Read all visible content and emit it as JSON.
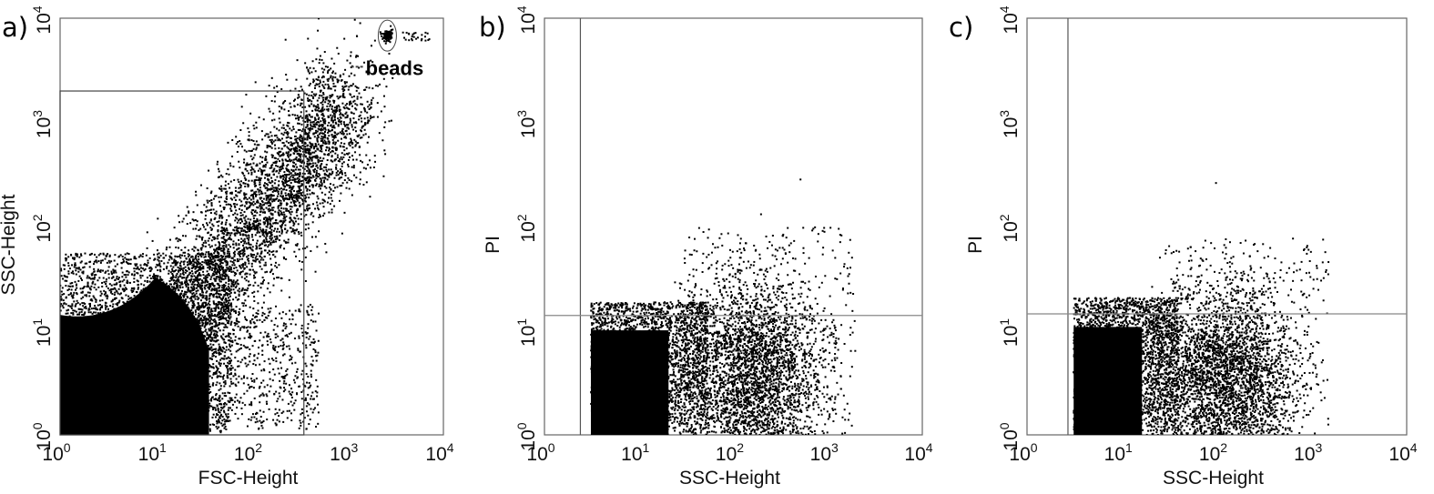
{
  "chart_data": [
    {
      "type": "scatter",
      "panel_label": "a)",
      "xlabel": "FSC-Height",
      "ylabel": "SSC-Height",
      "xscale": "log",
      "yscale": "log",
      "xlim": [
        1,
        10000
      ],
      "ylim": [
        1,
        10000
      ],
      "x_ticks": [
        {
          "base": "10",
          "exp": "0"
        },
        {
          "base": "10",
          "exp": "1"
        },
        {
          "base": "10",
          "exp": "2"
        },
        {
          "base": "10",
          "exp": "3"
        },
        {
          "base": "10",
          "exp": "4"
        }
      ],
      "y_ticks": [
        {
          "base": "10",
          "exp": "0"
        },
        {
          "base": "10",
          "exp": "1"
        },
        {
          "base": "10",
          "exp": "2"
        },
        {
          "base": "10",
          "exp": "3"
        },
        {
          "base": "10",
          "exp": "4"
        }
      ],
      "gate": {
        "shape": "rectangle",
        "x_range": [
          1,
          350
        ],
        "y_range": [
          1,
          2000
        ]
      },
      "annotation": {
        "text": "beads",
        "x": 2500,
        "y": 6500
      },
      "populations": [
        {
          "shape": "dense-blob",
          "x_range": [
            1,
            40
          ],
          "y_range": [
            1,
            30
          ]
        },
        {
          "shape": "diagonal-arm",
          "from": [
            5,
            3
          ],
          "to": [
            1000,
            1500
          ]
        },
        {
          "shape": "bead-cluster",
          "center": [
            2600,
            6800
          ]
        }
      ],
      "grid": false
    },
    {
      "type": "scatter",
      "panel_label": "b)",
      "xlabel": "SSC-Height",
      "ylabel": "PI",
      "xscale": "log",
      "yscale": "log",
      "xlim": [
        1,
        10000
      ],
      "ylim": [
        1,
        10000
      ],
      "x_ticks": [
        {
          "base": "10",
          "exp": "0"
        },
        {
          "base": "10",
          "exp": "1"
        },
        {
          "base": "10",
          "exp": "2"
        },
        {
          "base": "10",
          "exp": "3"
        },
        {
          "base": "10",
          "exp": "4"
        }
      ],
      "y_ticks": [
        {
          "base": "10",
          "exp": "0"
        },
        {
          "base": "10",
          "exp": "1"
        },
        {
          "base": "10",
          "exp": "2"
        },
        {
          "base": "10",
          "exp": "3"
        },
        {
          "base": "10",
          "exp": "4"
        }
      ],
      "quadrant_lines": {
        "x": 2.4,
        "y": 14
      },
      "populations": [
        {
          "shape": "dense-block",
          "x_range": [
            3.1,
            40
          ],
          "y_range": [
            1,
            12
          ]
        },
        {
          "shape": "diffuse-cloud",
          "x_range": [
            30,
            2000
          ],
          "y_range": [
            1,
            30
          ]
        }
      ],
      "grid": false
    },
    {
      "type": "scatter",
      "panel_label": "c)",
      "xlabel": "SSC-Height",
      "ylabel": "PI",
      "xscale": "log",
      "yscale": "log",
      "xlim": [
        1,
        10000
      ],
      "ylim": [
        1,
        10000
      ],
      "x_ticks": [
        {
          "base": "10",
          "exp": "0"
        },
        {
          "base": "10",
          "exp": "1"
        },
        {
          "base": "10",
          "exp": "2"
        },
        {
          "base": "10",
          "exp": "3"
        },
        {
          "base": "10",
          "exp": "4"
        }
      ],
      "y_ticks": [
        {
          "base": "10",
          "exp": "0"
        },
        {
          "base": "10",
          "exp": "1"
        },
        {
          "base": "10",
          "exp": "2"
        },
        {
          "base": "10",
          "exp": "3"
        },
        {
          "base": "10",
          "exp": "4"
        }
      ],
      "quadrant_lines": {
        "x": 2.7,
        "y": 14.5
      },
      "populations": [
        {
          "shape": "dense-block",
          "x_range": [
            3.1,
            30
          ],
          "y_range": [
            1,
            13
          ]
        },
        {
          "shape": "diffuse-cloud",
          "x_range": [
            25,
            1500
          ],
          "y_range": [
            1,
            25
          ]
        }
      ],
      "grid": false
    }
  ]
}
